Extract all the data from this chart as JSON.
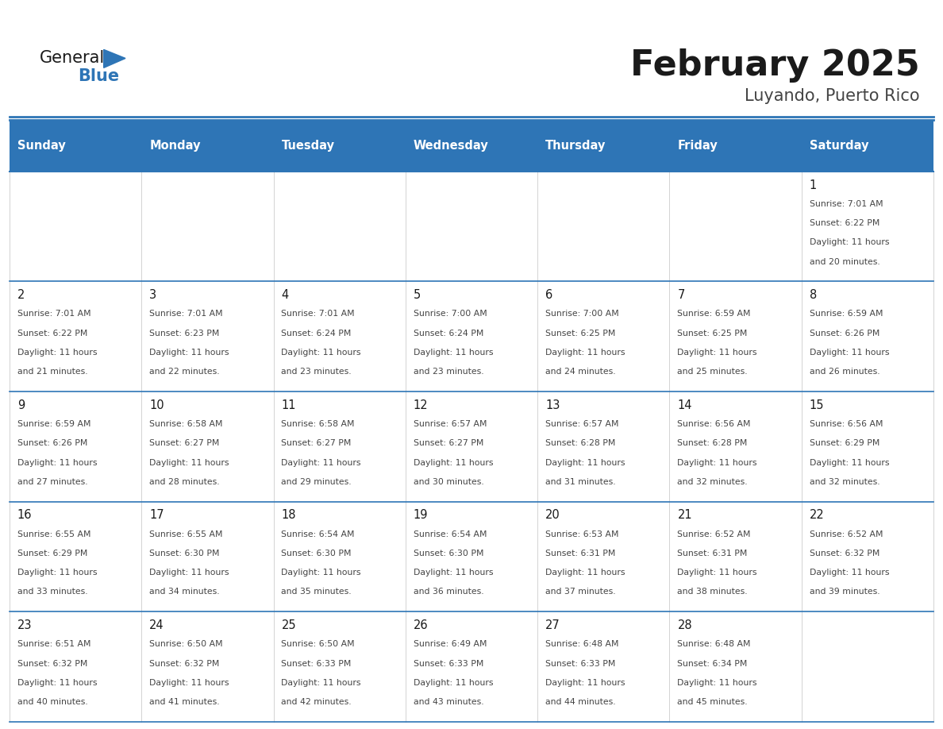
{
  "title": "February 2025",
  "subtitle": "Luyando, Puerto Rico",
  "header_bg": "#2E75B6",
  "header_text_color": "#FFFFFF",
  "cell_bg": "#FFFFFF",
  "border_color": "#2E75B6",
  "row_line_color": "#2E75B6",
  "col_line_color": "#CCCCCC",
  "day_headers": [
    "Sunday",
    "Monday",
    "Tuesday",
    "Wednesday",
    "Thursday",
    "Friday",
    "Saturday"
  ],
  "title_color": "#1a1a1a",
  "subtitle_color": "#444444",
  "day_num_color": "#1a1a1a",
  "cell_text_color": "#444444",
  "logo_general_color": "#1a1a1a",
  "logo_blue_color": "#2E75B6",
  "calendar_data": {
    "1": {
      "sunrise": "7:01 AM",
      "sunset": "6:22 PM",
      "minutes": "20",
      "col": 6,
      "row": 0
    },
    "2": {
      "sunrise": "7:01 AM",
      "sunset": "6:22 PM",
      "minutes": "21",
      "col": 0,
      "row": 1
    },
    "3": {
      "sunrise": "7:01 AM",
      "sunset": "6:23 PM",
      "minutes": "22",
      "col": 1,
      "row": 1
    },
    "4": {
      "sunrise": "7:01 AM",
      "sunset": "6:24 PM",
      "minutes": "23",
      "col": 2,
      "row": 1
    },
    "5": {
      "sunrise": "7:00 AM",
      "sunset": "6:24 PM",
      "minutes": "23",
      "col": 3,
      "row": 1
    },
    "6": {
      "sunrise": "7:00 AM",
      "sunset": "6:25 PM",
      "minutes": "24",
      "col": 4,
      "row": 1
    },
    "7": {
      "sunrise": "6:59 AM",
      "sunset": "6:25 PM",
      "minutes": "25",
      "col": 5,
      "row": 1
    },
    "8": {
      "sunrise": "6:59 AM",
      "sunset": "6:26 PM",
      "minutes": "26",
      "col": 6,
      "row": 1
    },
    "9": {
      "sunrise": "6:59 AM",
      "sunset": "6:26 PM",
      "minutes": "27",
      "col": 0,
      "row": 2
    },
    "10": {
      "sunrise": "6:58 AM",
      "sunset": "6:27 PM",
      "minutes": "28",
      "col": 1,
      "row": 2
    },
    "11": {
      "sunrise": "6:58 AM",
      "sunset": "6:27 PM",
      "minutes": "29",
      "col": 2,
      "row": 2
    },
    "12": {
      "sunrise": "6:57 AM",
      "sunset": "6:27 PM",
      "minutes": "30",
      "col": 3,
      "row": 2
    },
    "13": {
      "sunrise": "6:57 AM",
      "sunset": "6:28 PM",
      "minutes": "31",
      "col": 4,
      "row": 2
    },
    "14": {
      "sunrise": "6:56 AM",
      "sunset": "6:28 PM",
      "minutes": "32",
      "col": 5,
      "row": 2
    },
    "15": {
      "sunrise": "6:56 AM",
      "sunset": "6:29 PM",
      "minutes": "32",
      "col": 6,
      "row": 2
    },
    "16": {
      "sunrise": "6:55 AM",
      "sunset": "6:29 PM",
      "minutes": "33",
      "col": 0,
      "row": 3
    },
    "17": {
      "sunrise": "6:55 AM",
      "sunset": "6:30 PM",
      "minutes": "34",
      "col": 1,
      "row": 3
    },
    "18": {
      "sunrise": "6:54 AM",
      "sunset": "6:30 PM",
      "minutes": "35",
      "col": 2,
      "row": 3
    },
    "19": {
      "sunrise": "6:54 AM",
      "sunset": "6:30 PM",
      "minutes": "36",
      "col": 3,
      "row": 3
    },
    "20": {
      "sunrise": "6:53 AM",
      "sunset": "6:31 PM",
      "minutes": "37",
      "col": 4,
      "row": 3
    },
    "21": {
      "sunrise": "6:52 AM",
      "sunset": "6:31 PM",
      "minutes": "38",
      "col": 5,
      "row": 3
    },
    "22": {
      "sunrise": "6:52 AM",
      "sunset": "6:32 PM",
      "minutes": "39",
      "col": 6,
      "row": 3
    },
    "23": {
      "sunrise": "6:51 AM",
      "sunset": "6:32 PM",
      "minutes": "40",
      "col": 0,
      "row": 4
    },
    "24": {
      "sunrise": "6:50 AM",
      "sunset": "6:32 PM",
      "minutes": "41",
      "col": 1,
      "row": 4
    },
    "25": {
      "sunrise": "6:50 AM",
      "sunset": "6:33 PM",
      "minutes": "42",
      "col": 2,
      "row": 4
    },
    "26": {
      "sunrise": "6:49 AM",
      "sunset": "6:33 PM",
      "minutes": "43",
      "col": 3,
      "row": 4
    },
    "27": {
      "sunrise": "6:48 AM",
      "sunset": "6:33 PM",
      "minutes": "44",
      "col": 4,
      "row": 4
    },
    "28": {
      "sunrise": "6:48 AM",
      "sunset": "6:34 PM",
      "minutes": "45",
      "col": 5,
      "row": 4
    }
  }
}
